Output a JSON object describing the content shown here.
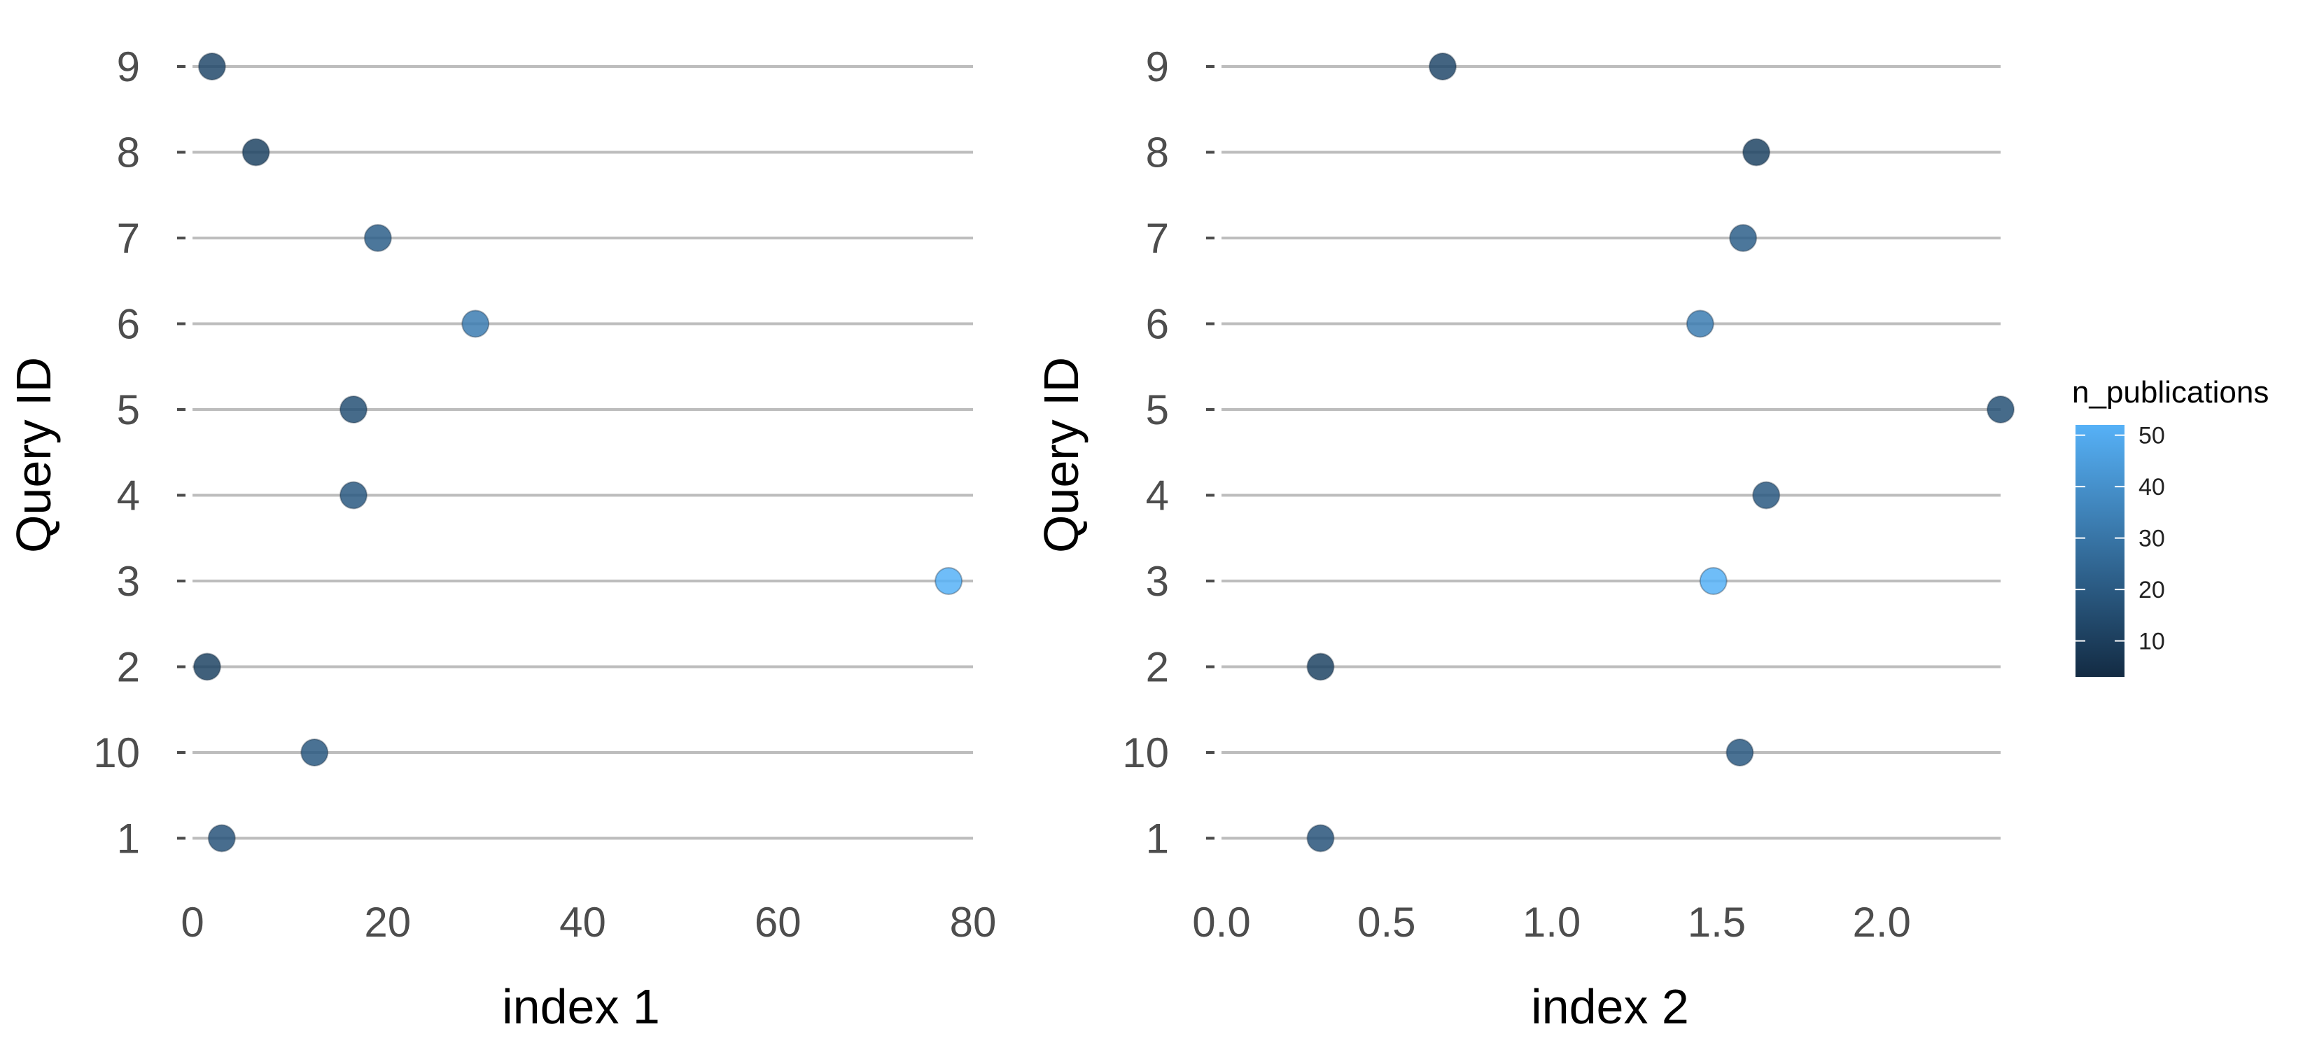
{
  "chart_data": [
    {
      "type": "scatter",
      "xlabel": "index 1",
      "ylabel": "Query ID",
      "xlim": [
        0,
        80
      ],
      "xticks": [
        0,
        20,
        40,
        60,
        80
      ],
      "categories": [
        "1",
        "10",
        "2",
        "3",
        "4",
        "5",
        "6",
        "7",
        "8",
        "9"
      ],
      "points": [
        {
          "query_id": "1",
          "x": 3.0,
          "n_publications": 18
        },
        {
          "query_id": "10",
          "x": 12.5,
          "n_publications": 20
        },
        {
          "query_id": "2",
          "x": 1.5,
          "n_publications": 12
        },
        {
          "query_id": "3",
          "x": 77.5,
          "n_publications": 52
        },
        {
          "query_id": "4",
          "x": 16.5,
          "n_publications": 20
        },
        {
          "query_id": "5",
          "x": 16.5,
          "n_publications": 17
        },
        {
          "query_id": "6",
          "x": 29.0,
          "n_publications": 33
        },
        {
          "query_id": "7",
          "x": 19.0,
          "n_publications": 22
        },
        {
          "query_id": "8",
          "x": 6.5,
          "n_publications": 12
        },
        {
          "query_id": "9",
          "x": 2.0,
          "n_publications": 14
        }
      ],
      "grid": "horizontal lines per category"
    },
    {
      "type": "scatter",
      "xlabel": "index 2",
      "ylabel": "Query ID",
      "xlim": [
        0,
        2.36
      ],
      "xticks": [
        "0.0",
        "0.5",
        "1.0",
        "1.5",
        "2.0"
      ],
      "categories": [
        "1",
        "10",
        "2",
        "3",
        "4",
        "5",
        "6",
        "7",
        "8",
        "9"
      ],
      "points": [
        {
          "query_id": "1",
          "x": 0.3,
          "n_publications": 18
        },
        {
          "query_id": "10",
          "x": 1.57,
          "n_publications": 20
        },
        {
          "query_id": "2",
          "x": 0.3,
          "n_publications": 12
        },
        {
          "query_id": "3",
          "x": 1.49,
          "n_publications": 52
        },
        {
          "query_id": "4",
          "x": 1.65,
          "n_publications": 20
        },
        {
          "query_id": "5",
          "x": 2.36,
          "n_publications": 17
        },
        {
          "query_id": "6",
          "x": 1.45,
          "n_publications": 33
        },
        {
          "query_id": "7",
          "x": 1.58,
          "n_publications": 22
        },
        {
          "query_id": "8",
          "x": 1.62,
          "n_publications": 12
        },
        {
          "query_id": "9",
          "x": 0.67,
          "n_publications": 14
        }
      ],
      "grid": "horizontal lines per category"
    }
  ],
  "legend": {
    "title": "n_publications",
    "ticks": [
      "10",
      "20",
      "30",
      "40",
      "50"
    ],
    "tick_values": [
      10,
      20,
      30,
      40,
      50
    ],
    "range": [
      3,
      52
    ],
    "low_color": "#132b43",
    "high_color": "#56b1f7",
    "placement": "right"
  }
}
